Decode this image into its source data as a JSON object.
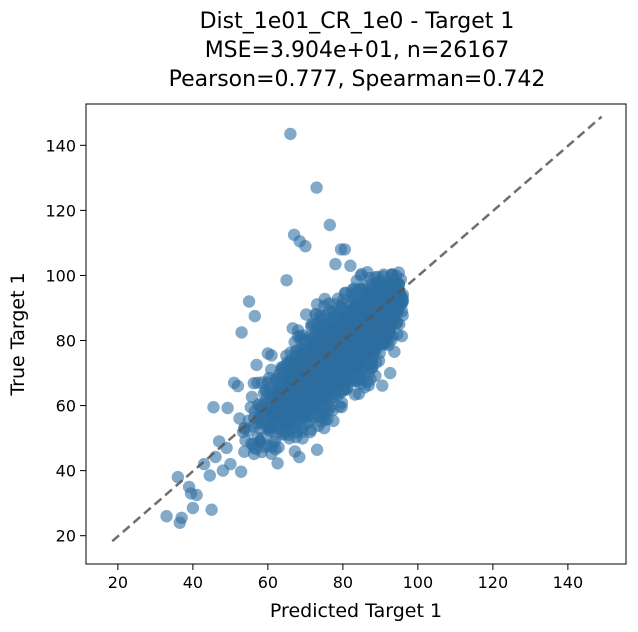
{
  "chart_data": {
    "type": "scatter",
    "title_lines": [
      "Dist_1e01_CR_1e0 - Target 1",
      "MSE=3.904e+01, n=26167",
      "Pearson=0.777, Spearman=0.742"
    ],
    "xlabel": "Predicted Target 1",
    "ylabel": "True Target 1",
    "xlim": [
      11.5,
      155.5
    ],
    "ylim": [
      11.3,
      152.7
    ],
    "xticks": [
      20,
      40,
      60,
      80,
      100,
      120,
      140
    ],
    "yticks": [
      20,
      40,
      60,
      80,
      100,
      120,
      140
    ],
    "grid": false,
    "point_color": "#2e6fa2",
    "point_alpha": 0.6,
    "reference_line": {
      "style": "dashed",
      "color": "#555555",
      "from": [
        18.5,
        18.3
      ],
      "to": [
        149,
        148.8
      ]
    },
    "outliers": [
      {
        "x": 66,
        "y": 143.5
      },
      {
        "x": 73,
        "y": 127
      },
      {
        "x": 76.5,
        "y": 115.5
      },
      {
        "x": 67,
        "y": 112.5
      },
      {
        "x": 68.5,
        "y": 110.5
      },
      {
        "x": 70,
        "y": 109
      },
      {
        "x": 79.5,
        "y": 108
      },
      {
        "x": 80.5,
        "y": 108
      },
      {
        "x": 78,
        "y": 103.5
      },
      {
        "x": 82,
        "y": 103
      },
      {
        "x": 86.5,
        "y": 101
      },
      {
        "x": 65,
        "y": 98.5
      },
      {
        "x": 55,
        "y": 92
      },
      {
        "x": 56.5,
        "y": 87.5
      },
      {
        "x": 53,
        "y": 82.5
      },
      {
        "x": 60,
        "y": 76
      },
      {
        "x": 57,
        "y": 72.5
      },
      {
        "x": 51,
        "y": 67
      },
      {
        "x": 45.5,
        "y": 59.5
      },
      {
        "x": 47,
        "y": 49
      },
      {
        "x": 49,
        "y": 47
      },
      {
        "x": 43,
        "y": 42
      },
      {
        "x": 44.5,
        "y": 38.5
      },
      {
        "x": 36,
        "y": 38
      },
      {
        "x": 39,
        "y": 35
      },
      {
        "x": 39.5,
        "y": 33
      },
      {
        "x": 41,
        "y": 32.5
      },
      {
        "x": 40,
        "y": 28.5
      },
      {
        "x": 45,
        "y": 28
      },
      {
        "x": 33,
        "y": 26
      },
      {
        "x": 36.5,
        "y": 24
      },
      {
        "x": 37,
        "y": 25.5
      },
      {
        "x": 50,
        "y": 42
      },
      {
        "x": 48,
        "y": 40
      },
      {
        "x": 52,
        "y": 66
      },
      {
        "x": 58,
        "y": 55
      }
    ],
    "dense_cloud": {
      "description_count": 26167,
      "x_range": [
        46,
        96
      ],
      "y_range": [
        37,
        101
      ],
      "slope": 1.0,
      "intercept": -3,
      "spread": 6.5
    }
  }
}
